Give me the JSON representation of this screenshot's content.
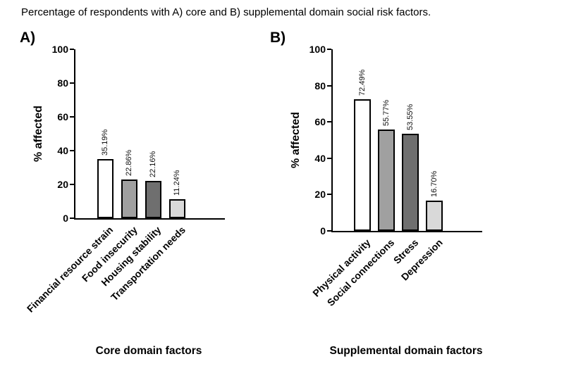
{
  "title": "Percentage of respondents with A) core and B) supplemental domain social risk factors.",
  "chart_data": [
    {
      "type": "bar",
      "panel_label": "A)",
      "title": "",
      "xlabel": "Core domain factors",
      "ylabel": "% affected",
      "categories": [
        "Financial resource strain",
        "Food insecurity",
        "Housing stability",
        "Transportation needs"
      ],
      "values": [
        35.19,
        22.86,
        22.16,
        11.24
      ],
      "value_labels": [
        "35.19%",
        "22.86%",
        "22.16%",
        "11.24%"
      ],
      "bar_colors": [
        "#ffffff",
        "#a0a0a0",
        "#6f6f6f",
        "#d9d9d9"
      ],
      "bar_border_color": "#000000",
      "ylim": [
        0,
        100
      ],
      "yticks": [
        0,
        20,
        40,
        60,
        80,
        100
      ],
      "grid": false,
      "legend": "none"
    },
    {
      "type": "bar",
      "panel_label": "B)",
      "title": "",
      "xlabel": "Supplemental domain factors",
      "ylabel": "% affected",
      "categories": [
        "Physical activity",
        "Social connections",
        "Stress",
        "Depression"
      ],
      "values": [
        72.49,
        55.77,
        53.55,
        16.7
      ],
      "value_labels": [
        "72.49%",
        "55.77%",
        "53.55%",
        "16.70%"
      ],
      "bar_colors": [
        "#ffffff",
        "#a0a0a0",
        "#6f6f6f",
        "#d9d9d9"
      ],
      "bar_border_color": "#000000",
      "ylim": [
        0,
        100
      ],
      "yticks": [
        0,
        20,
        40,
        60,
        80,
        100
      ],
      "grid": false,
      "legend": "none"
    }
  ]
}
